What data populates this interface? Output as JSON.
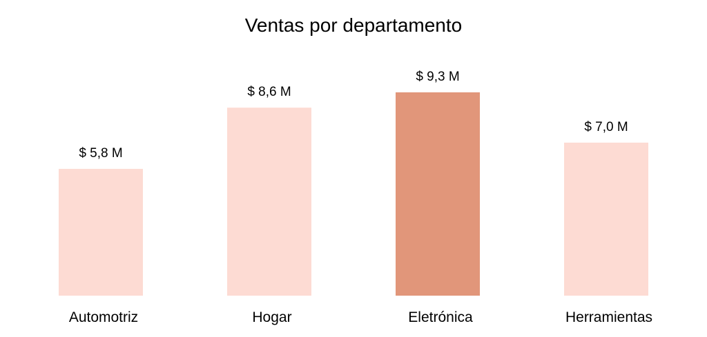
{
  "chart_data": {
    "type": "bar",
    "title": "Ventas por departamento",
    "categories": [
      "Automotriz",
      "Hogar",
      "Eletrónica",
      "Herramientas"
    ],
    "values": [
      5.8,
      8.6,
      9.3,
      7.0
    ],
    "value_labels": [
      "$ 5,8 M",
      "$ 8,6 M",
      "$ 9,3 M",
      "$ 7,0 M"
    ],
    "highlight_index": 2,
    "colors": {
      "base": "#fddbd3",
      "highlight": "#e1967a"
    },
    "xlabel": "",
    "ylabel": "",
    "ylim": [
      0,
      9.3
    ],
    "grid": false,
    "legend": "none"
  }
}
